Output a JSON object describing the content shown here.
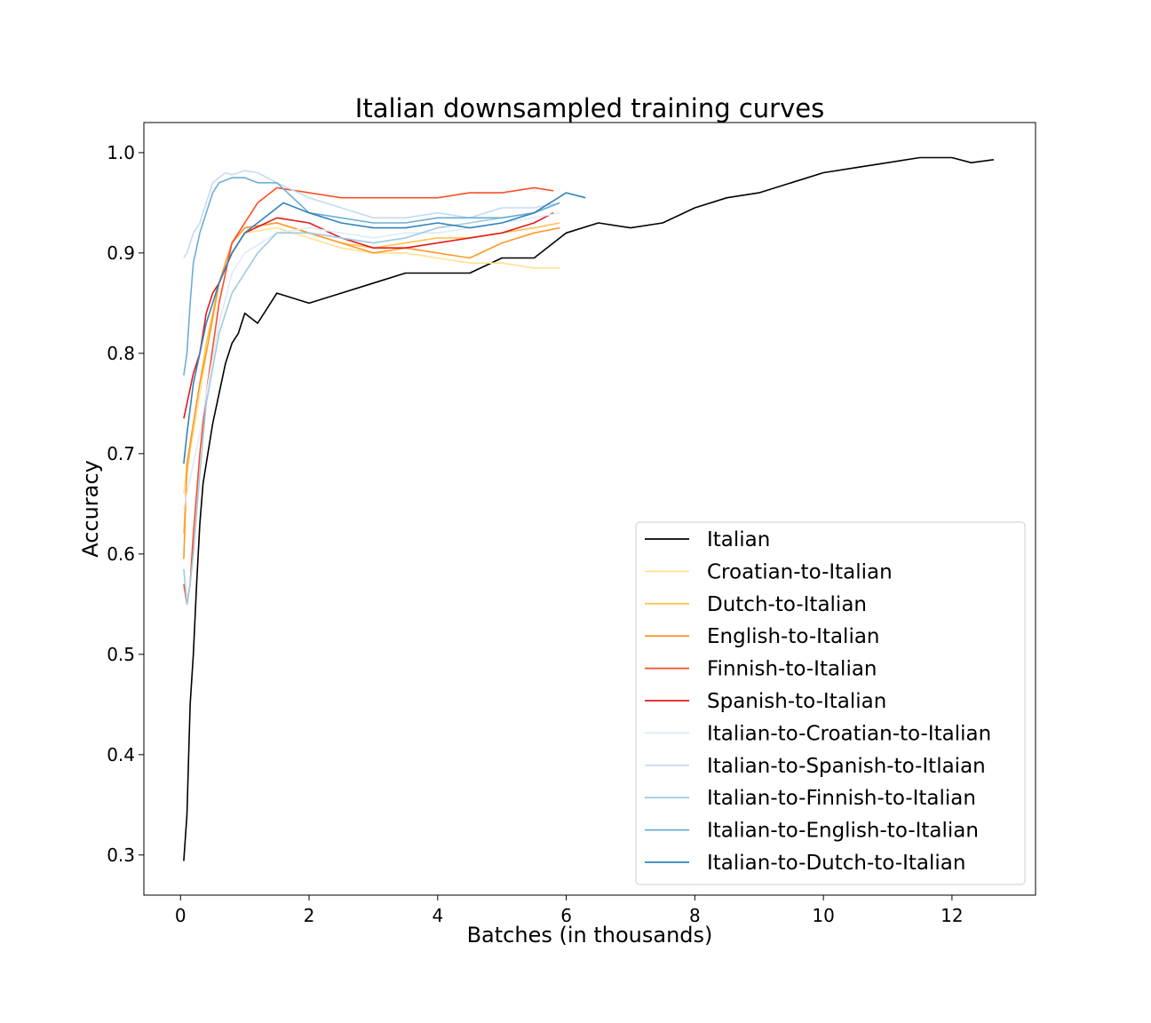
{
  "chart_data": {
    "type": "line",
    "title": "Italian downsampled training curves",
    "xlabel": "Batches (in thousands)",
    "ylabel": "Accuracy",
    "xlim": [
      -0.57,
      13.3
    ],
    "ylim": [
      0.26,
      1.03
    ],
    "xticks": [
      0,
      2,
      4,
      6,
      8,
      10,
      12
    ],
    "yticks": [
      0.3,
      0.4,
      0.5,
      0.6,
      0.7,
      0.8,
      0.9,
      1.0
    ],
    "xtick_labels": [
      "0",
      "2",
      "4",
      "6",
      "8",
      "10",
      "12"
    ],
    "ytick_labels": [
      "0.3",
      "0.4",
      "0.5",
      "0.6",
      "0.7",
      "0.8",
      "0.9",
      "1.0"
    ],
    "grid": false,
    "legend_position": "lower-right",
    "series": [
      {
        "name": "Italian",
        "color": "#000000",
        "x": [
          0.05,
          0.1,
          0.15,
          0.2,
          0.25,
          0.3,
          0.35,
          0.4,
          0.5,
          0.6,
          0.7,
          0.8,
          0.9,
          1.0,
          1.2,
          1.5,
          2.0,
          2.5,
          3.0,
          3.5,
          4.0,
          4.5,
          5.0,
          5.5,
          6.0,
          6.5,
          7.0,
          7.5,
          8.0,
          8.5,
          9.0,
          9.5,
          10.0,
          10.5,
          11.0,
          11.5,
          12.0,
          12.3,
          12.65
        ],
        "y": [
          0.294,
          0.34,
          0.45,
          0.5,
          0.57,
          0.63,
          0.67,
          0.69,
          0.73,
          0.76,
          0.79,
          0.81,
          0.82,
          0.84,
          0.83,
          0.86,
          0.85,
          0.86,
          0.87,
          0.88,
          0.88,
          0.88,
          0.895,
          0.895,
          0.92,
          0.93,
          0.925,
          0.93,
          0.945,
          0.955,
          0.96,
          0.97,
          0.98,
          0.985,
          0.99,
          0.995,
          0.995,
          0.99,
          0.993
        ]
      },
      {
        "name": "Croatian-to-Italian",
        "color": "#fee391",
        "x": [
          0.05,
          0.1,
          0.2,
          0.3,
          0.4,
          0.6,
          0.8,
          1.0,
          1.5,
          2.0,
          2.5,
          3.0,
          3.5,
          4.0,
          4.5,
          5.0,
          5.5,
          5.9
        ],
        "y": [
          0.66,
          0.69,
          0.72,
          0.76,
          0.8,
          0.87,
          0.9,
          0.92,
          0.925,
          0.915,
          0.905,
          0.9,
          0.9,
          0.895,
          0.89,
          0.89,
          0.885,
          0.885
        ]
      },
      {
        "name": "Dutch-to-Italian",
        "color": "#fec44f",
        "x": [
          0.05,
          0.1,
          0.2,
          0.3,
          0.4,
          0.6,
          0.8,
          1.0,
          1.5,
          2.0,
          2.5,
          3.0,
          3.5,
          4.0,
          4.5,
          5.0,
          5.5,
          5.9
        ],
        "y": [
          0.62,
          0.68,
          0.73,
          0.77,
          0.81,
          0.87,
          0.91,
          0.925,
          0.93,
          0.92,
          0.91,
          0.905,
          0.91,
          0.915,
          0.915,
          0.92,
          0.925,
          0.93
        ]
      },
      {
        "name": "English-to-Italian",
        "color": "#fe9929",
        "x": [
          0.05,
          0.1,
          0.2,
          0.3,
          0.4,
          0.6,
          0.8,
          1.0,
          1.5,
          2.0,
          2.5,
          3.0,
          3.5,
          4.0,
          4.5,
          5.0,
          5.5,
          5.9
        ],
        "y": [
          0.595,
          0.69,
          0.73,
          0.77,
          0.8,
          0.87,
          0.91,
          0.925,
          0.93,
          0.92,
          0.91,
          0.9,
          0.905,
          0.9,
          0.895,
          0.91,
          0.92,
          0.925
        ]
      },
      {
        "name": "Finnish-to-Italian",
        "color": "#fc4e2a",
        "x": [
          0.05,
          0.1,
          0.15,
          0.2,
          0.3,
          0.4,
          0.6,
          0.8,
          1.0,
          1.2,
          1.5,
          2.0,
          2.5,
          3.0,
          3.5,
          4.0,
          4.5,
          5.0,
          5.5,
          5.8
        ],
        "y": [
          0.57,
          0.55,
          0.57,
          0.62,
          0.7,
          0.76,
          0.85,
          0.91,
          0.93,
          0.95,
          0.965,
          0.96,
          0.955,
          0.955,
          0.955,
          0.955,
          0.96,
          0.96,
          0.965,
          0.962
        ]
      },
      {
        "name": "Spanish-to-Italian",
        "color": "#e31a1c",
        "x": [
          0.05,
          0.1,
          0.2,
          0.3,
          0.4,
          0.5,
          0.6,
          0.8,
          1.0,
          1.5,
          2.0,
          2.5,
          3.0,
          3.5,
          4.0,
          4.5,
          5.0,
          5.5,
          5.8
        ],
        "y": [
          0.735,
          0.75,
          0.78,
          0.8,
          0.84,
          0.86,
          0.87,
          0.9,
          0.92,
          0.935,
          0.93,
          0.915,
          0.905,
          0.905,
          0.91,
          0.915,
          0.92,
          0.93,
          0.94
        ]
      },
      {
        "name": "Italian-to-Croatian-to-Italian",
        "color": "#deebf7",
        "x": [
          0.05,
          0.1,
          0.2,
          0.3,
          0.4,
          0.6,
          0.8,
          1.0,
          1.5,
          2.0,
          2.5,
          3.0,
          3.5,
          4.0,
          4.5,
          5.0,
          5.5,
          5.9
        ],
        "y": [
          0.645,
          0.66,
          0.69,
          0.72,
          0.76,
          0.83,
          0.88,
          0.9,
          0.92,
          0.925,
          0.92,
          0.915,
          0.92,
          0.92,
          0.925,
          0.93,
          0.935,
          0.94
        ]
      },
      {
        "name": "Italian-to-Spanish-to-Itlaian",
        "color": "#c6dbef",
        "x": [
          0.05,
          0.1,
          0.2,
          0.3,
          0.4,
          0.5,
          0.6,
          0.7,
          0.8,
          1.0,
          1.2,
          1.5,
          2.0,
          2.5,
          3.0,
          3.5,
          4.0,
          4.5,
          5.0,
          5.5,
          5.9
        ],
        "y": [
          0.895,
          0.9,
          0.92,
          0.93,
          0.95,
          0.97,
          0.975,
          0.98,
          0.978,
          0.982,
          0.98,
          0.97,
          0.955,
          0.945,
          0.935,
          0.935,
          0.94,
          0.935,
          0.945,
          0.945,
          0.95
        ]
      },
      {
        "name": "Italian-to-Finnish-to-Italian",
        "color": "#9ecae1",
        "x": [
          0.05,
          0.1,
          0.15,
          0.2,
          0.3,
          0.4,
          0.6,
          0.8,
          1.0,
          1.2,
          1.5,
          2.0,
          2.5,
          3.0,
          3.5,
          4.0,
          4.5,
          5.0,
          5.5,
          5.9
        ],
        "y": [
          0.585,
          0.55,
          0.57,
          0.6,
          0.68,
          0.75,
          0.82,
          0.86,
          0.88,
          0.9,
          0.92,
          0.92,
          0.915,
          0.91,
          0.915,
          0.925,
          0.93,
          0.935,
          0.94,
          0.95
        ]
      },
      {
        "name": "Italian-to-English-to-Italian",
        "color": "#6baed6",
        "x": [
          0.05,
          0.1,
          0.15,
          0.2,
          0.3,
          0.4,
          0.5,
          0.6,
          0.8,
          1.0,
          1.2,
          1.5,
          2.0,
          2.5,
          3.0,
          3.5,
          4.0,
          4.5,
          5.0,
          5.5,
          5.9
        ],
        "y": [
          0.778,
          0.8,
          0.85,
          0.89,
          0.92,
          0.94,
          0.96,
          0.97,
          0.975,
          0.975,
          0.97,
          0.97,
          0.94,
          0.935,
          0.93,
          0.93,
          0.935,
          0.935,
          0.935,
          0.94,
          0.95
        ]
      },
      {
        "name": "Italian-to-Dutch-to-Italian",
        "color": "#3182bd",
        "x": [
          0.05,
          0.1,
          0.2,
          0.3,
          0.4,
          0.6,
          0.8,
          1.0,
          1.2,
          1.4,
          1.6,
          2.0,
          2.5,
          3.0,
          3.5,
          4.0,
          4.5,
          5.0,
          5.5,
          6.0,
          6.3
        ],
        "y": [
          0.69,
          0.72,
          0.77,
          0.8,
          0.83,
          0.87,
          0.9,
          0.92,
          0.93,
          0.94,
          0.95,
          0.94,
          0.93,
          0.925,
          0.925,
          0.93,
          0.925,
          0.93,
          0.94,
          0.96,
          0.955
        ]
      }
    ]
  }
}
